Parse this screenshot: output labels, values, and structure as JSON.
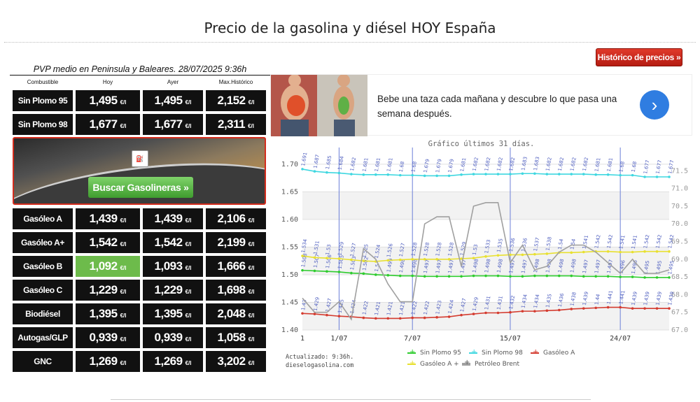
{
  "page": {
    "title": "Precio de la gasolina y diésel HOY España"
  },
  "history_button": {
    "label": "Histórico de precios »",
    "color": "#c8281b"
  },
  "table": {
    "subtitle": "PVP medio en Peninsula y Baleares. 28/07/2025 9:36h",
    "headers": [
      "Combustible",
      "Hoy",
      "Ayer",
      "Max.Histórico"
    ],
    "unit": "€/l",
    "rows_top": [
      {
        "name": "Sin Plomo 95",
        "hoy": "1,495",
        "ayer": "1,495",
        "max": "2,152"
      },
      {
        "name": "Sin Plomo 98",
        "hoy": "1,677",
        "ayer": "1,677",
        "max": "2,311"
      }
    ],
    "rows_bottom": [
      {
        "name": "Gasóleo A",
        "hoy": "1,439",
        "ayer": "1,439",
        "max": "2,106"
      },
      {
        "name": "Gasóleo A+",
        "hoy": "1,542",
        "ayer": "1,542",
        "max": "2,199"
      },
      {
        "name": "Gasóleo B",
        "hoy": "1,092",
        "ayer": "1,093",
        "max": "1,666",
        "highlight": true
      },
      {
        "name": "Gasóleo C",
        "hoy": "1,229",
        "ayer": "1,229",
        "max": "1,698"
      },
      {
        "name": "Biodiésel",
        "hoy": "1,395",
        "ayer": "1,395",
        "max": "2,048"
      },
      {
        "name": "Autogas/GLP",
        "hoy": "0,939",
        "ayer": "0,939",
        "max": "1,058"
      },
      {
        "name": "GNC",
        "hoy": "1,269",
        "ayer": "1,269",
        "max": "3,202"
      }
    ],
    "highlight_color": "#6dbb4b"
  },
  "banner": {
    "button_label": "Buscar Gasolineras »",
    "logo_icon": "gasolineras-logo-icon"
  },
  "ad": {
    "text": "Bebe una taza cada mañana y descubre lo que pasa una semana después.",
    "arrow_icon": "chevron-right-icon",
    "accent": "#2f7de1"
  },
  "chart_title": "Gráfico últimos 31 días.",
  "updated_text": [
    "Actualizado: 9:36h.",
    "dieselogasolina.com"
  ],
  "chart_data": {
    "type": "line",
    "x": [
      1,
      2,
      3,
      4,
      5,
      6,
      7,
      8,
      9,
      10,
      11,
      12,
      13,
      14,
      15,
      16,
      17,
      18,
      19,
      20,
      21,
      22,
      23,
      24,
      25,
      26,
      27,
      28,
      29,
      30,
      31
    ],
    "x_tick_labels": [
      "1",
      "1/07",
      "7/07",
      "15/07",
      "24/07"
    ],
    "ylim": [
      1.4,
      1.72
    ],
    "y_ticks": [
      "1.40",
      "1.45",
      "1.50",
      "1.55",
      "1.60",
      "1.65",
      "1.70"
    ],
    "y2lim": [
      67.0,
      72.0
    ],
    "y2_ticks": [
      "67.0",
      "67.5",
      "68.0",
      "68.5",
      "69.0",
      "69.5",
      "70.0",
      "70.5",
      "71.0",
      "71.5"
    ],
    "grid": true,
    "legend_position": "bottom",
    "series": [
      {
        "name": "Sin Plomo 95",
        "color": "#2ecc2e",
        "axis": "left",
        "values": [
          1.508,
          1.507,
          1.506,
          1.505,
          1.503,
          1.502,
          1.5,
          1.499,
          1.498,
          1.498,
          1.497,
          1.497,
          1.497,
          1.497,
          1.498,
          1.498,
          1.498,
          1.497,
          1.497,
          1.498,
          1.498,
          1.498,
          1.498,
          1.497,
          1.497,
          1.497,
          1.496,
          1.496,
          1.495,
          1.495,
          1.495
        ],
        "labels": [
          "1.508",
          "1.507",
          "1.506",
          "1.505",
          "1.503",
          "1.502",
          "1.5",
          "1.499",
          "1.498",
          "1.498",
          "1.497",
          "1.497",
          "1.497",
          "1.497",
          "1.498",
          "1.498",
          "1.498",
          "1.497",
          "1.497",
          "1.498",
          "1.498",
          "1.498",
          "1.498",
          "1.497",
          "1.497",
          "1.497",
          "1.496",
          "1.496",
          "1.495",
          "1.495",
          "1.495"
        ]
      },
      {
        "name": "Sin Plomo 98",
        "color": "#3fd7e0",
        "axis": "left",
        "values": [
          1.691,
          1.687,
          1.685,
          1.684,
          1.682,
          1.681,
          1.681,
          1.681,
          1.68,
          1.68,
          1.679,
          1.679,
          1.679,
          1.681,
          1.682,
          1.682,
          1.682,
          1.682,
          1.683,
          1.683,
          1.682,
          1.682,
          1.682,
          1.682,
          1.681,
          1.681,
          1.68,
          1.68,
          1.677,
          1.677,
          1.677
        ],
        "labels": [
          "1.691",
          "1.687",
          "1.685",
          "1.684",
          "1.682",
          "1.681",
          "1.681",
          "1.681",
          "1.68",
          "1.68",
          "1.679",
          "1.679",
          "1.679",
          "1.681",
          "1.682",
          "1.682",
          "1.682",
          "1.682",
          "1.683",
          "1.683",
          "1.682",
          "1.682",
          "1.682",
          "1.682",
          "1.681",
          "1.681",
          "1.68",
          "1.68",
          "1.677",
          "1.677",
          "1.677"
        ]
      },
      {
        "name": "Gasóleo A",
        "color": "#d43b2f",
        "axis": "left",
        "values": [
          1.43,
          1.429,
          1.427,
          1.425,
          1.424,
          1.422,
          1.421,
          1.421,
          1.421,
          1.422,
          1.422,
          1.423,
          1.424,
          1.427,
          1.429,
          1.431,
          1.431,
          1.432,
          1.434,
          1.434,
          1.435,
          1.436,
          1.438,
          1.439,
          1.44,
          1.441,
          1.441,
          1.439,
          1.439,
          1.439,
          1.439
        ],
        "labels": [
          "1.43",
          "1.429",
          "1.427",
          "1.425",
          "1.424",
          "1.422",
          "1.421",
          "1.421",
          "1.421",
          "1.422",
          "1.422",
          "1.423",
          "1.424",
          "1.427",
          "1.429",
          "1.431",
          "1.431",
          "1.432",
          "1.434",
          "1.434",
          "1.435",
          "1.436",
          "1.438",
          "1.439",
          "1.44",
          "1.441",
          "1.441",
          "1.439",
          "1.439",
          "1.439",
          "1.439"
        ]
      },
      {
        "name": "Gasóleo A +",
        "color": "#e8e030",
        "axis": "left",
        "values": [
          1.534,
          1.531,
          1.53,
          1.529,
          1.527,
          1.525,
          1.524,
          1.526,
          1.527,
          1.528,
          1.528,
          1.528,
          1.528,
          1.529,
          1.53,
          1.533,
          1.535,
          1.536,
          1.536,
          1.537,
          1.538,
          1.54,
          1.54,
          1.541,
          1.542,
          1.542,
          1.541,
          1.541,
          1.542,
          1.542,
          1.542
        ],
        "labels": [
          "1.534",
          "1.531",
          "1.53",
          "1.529",
          "1.527",
          "1.525",
          "1.524",
          "1.526",
          "1.527",
          "1.528",
          "1.528",
          "1.528",
          "1.528",
          "1.529",
          "1.53",
          "1.533",
          "1.535",
          "1.536",
          "1.536",
          "1.537",
          "1.538",
          "1.54",
          "1.54",
          "1.541",
          "1.542",
          "1.542",
          "1.541",
          "1.541",
          "1.542",
          "1.542",
          "1.542"
        ]
      },
      {
        "name": "Petróleo Brent",
        "color": "#a0a0a0",
        "axis": "right",
        "values": [
          67.9,
          67.5,
          67.5,
          67.8,
          67.3,
          69.3,
          69.0,
          68.3,
          67.8,
          67.8,
          70.0,
          70.2,
          70.2,
          68.8,
          70.5,
          70.6,
          70.6,
          68.9,
          69.4,
          68.7,
          68.8,
          69.2,
          69.4,
          69.4,
          69.2,
          68.9,
          68.6,
          69.0,
          68.6,
          68.6,
          68.7
        ]
      }
    ]
  }
}
